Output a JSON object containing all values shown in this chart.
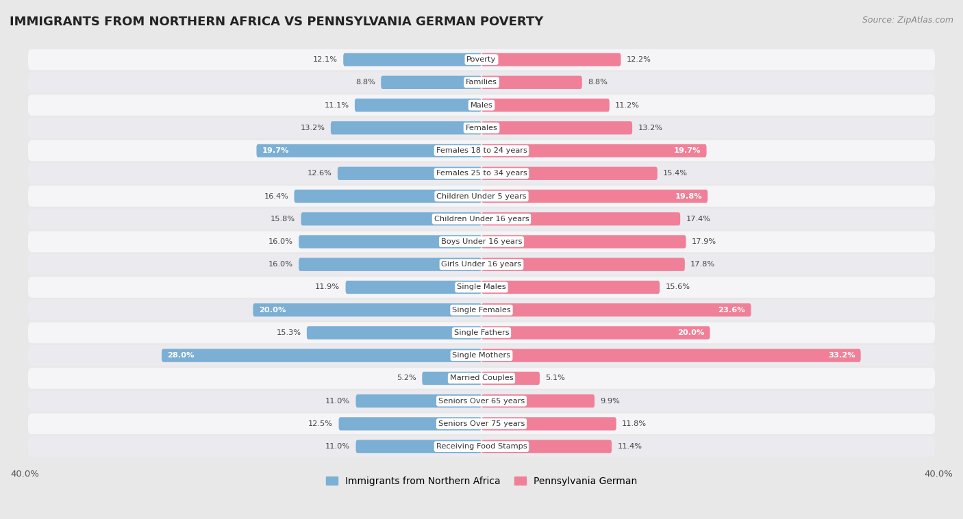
{
  "title": "IMMIGRANTS FROM NORTHERN AFRICA VS PENNSYLVANIA GERMAN POVERTY",
  "source": "Source: ZipAtlas.com",
  "categories": [
    "Poverty",
    "Families",
    "Males",
    "Females",
    "Females 18 to 24 years",
    "Females 25 to 34 years",
    "Children Under 5 years",
    "Children Under 16 years",
    "Boys Under 16 years",
    "Girls Under 16 years",
    "Single Males",
    "Single Females",
    "Single Fathers",
    "Single Mothers",
    "Married Couples",
    "Seniors Over 65 years",
    "Seniors Over 75 years",
    "Receiving Food Stamps"
  ],
  "left_values": [
    12.1,
    8.8,
    11.1,
    13.2,
    19.7,
    12.6,
    16.4,
    15.8,
    16.0,
    16.0,
    11.9,
    20.0,
    15.3,
    28.0,
    5.2,
    11.0,
    12.5,
    11.0
  ],
  "right_values": [
    12.2,
    8.8,
    11.2,
    13.2,
    19.7,
    15.4,
    19.8,
    17.4,
    17.9,
    17.8,
    15.6,
    23.6,
    20.0,
    33.2,
    5.1,
    9.9,
    11.8,
    11.4
  ],
  "left_color": "#7BAFD4",
  "right_color": "#F08098",
  "axis_max": 40.0,
  "legend_left": "Immigrants from Northern Africa",
  "legend_right": "Pennsylvania German",
  "bg_color": "#e8e8e8",
  "row_color_odd": "#f0f0f0",
  "row_color_even": "#e0e0e8",
  "bar_bg_color": "#d8d8e0",
  "title_fontsize": 13,
  "source_fontsize": 9,
  "inside_label_threshold": 18.0
}
